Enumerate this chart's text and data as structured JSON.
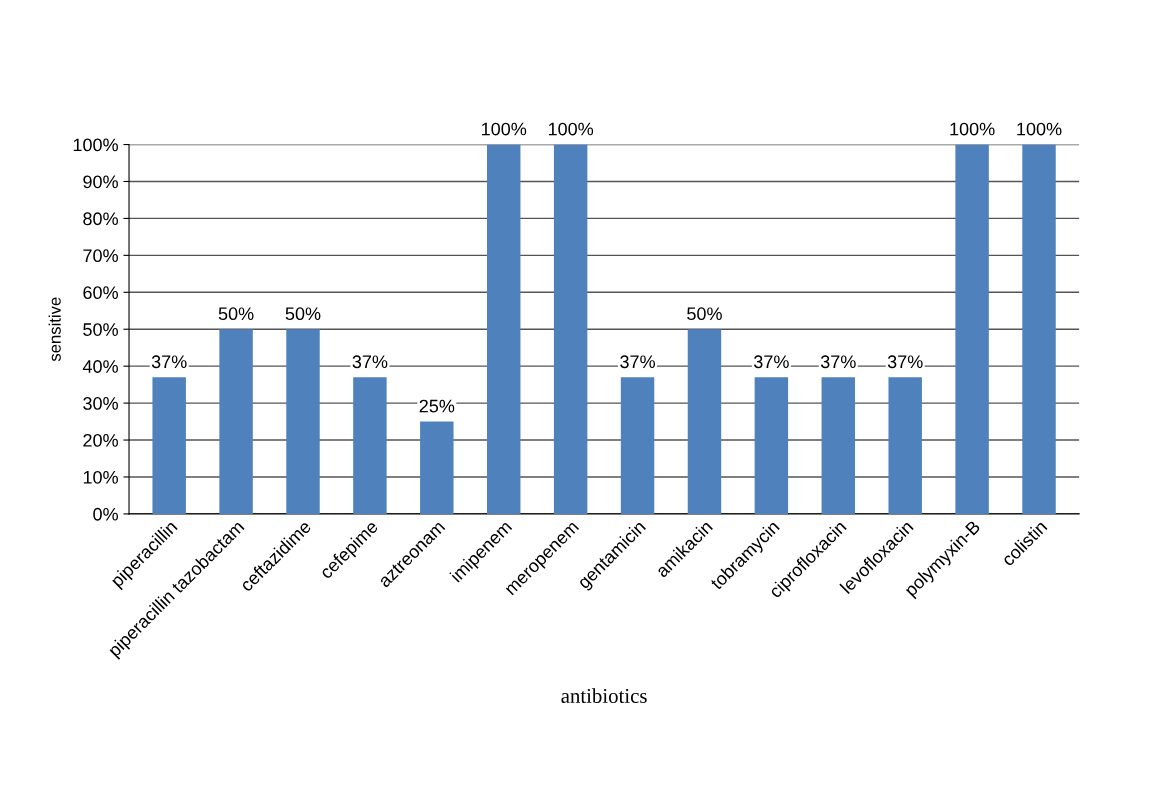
{
  "chart_data": {
    "type": "bar",
    "xlabel": "antibiotics",
    "ylabel": "sensitive",
    "categories": [
      "piperacillin",
      "piperacillin tazobactam",
      "ceftazidime",
      "cefepime",
      "aztreonam",
      "imipenem",
      "meropenem",
      "gentamicin",
      "amikacin",
      "tobramycin",
      "ciprofloxacin",
      "levofloxacin",
      "polymyxin-B",
      "colistin"
    ],
    "values": [
      37,
      50,
      50,
      37,
      25,
      100,
      100,
      37,
      50,
      37,
      37,
      37,
      100,
      100
    ],
    "value_labels": [
      "37%",
      "50%",
      "50%",
      "37%",
      "25%",
      "100%",
      "100%",
      "37%",
      "50%",
      "37%",
      "37%",
      "37%",
      "100%",
      "100%"
    ],
    "color": "#4f81bd",
    "ylim": [
      0,
      100
    ],
    "yticks": [
      {
        "value": 0,
        "label": "0%"
      },
      {
        "value": 10,
        "label": "10%"
      },
      {
        "value": 20,
        "label": "20%"
      },
      {
        "value": 30,
        "label": "30%"
      },
      {
        "value": 40,
        "label": "40%"
      },
      {
        "value": 50,
        "label": "50%"
      },
      {
        "value": 60,
        "label": "60%"
      },
      {
        "value": 70,
        "label": "70%"
      },
      {
        "value": 80,
        "label": "80%"
      },
      {
        "value": 90,
        "label": "90%"
      },
      {
        "value": 100,
        "label": "100%"
      }
    ],
    "grid": "y"
  }
}
